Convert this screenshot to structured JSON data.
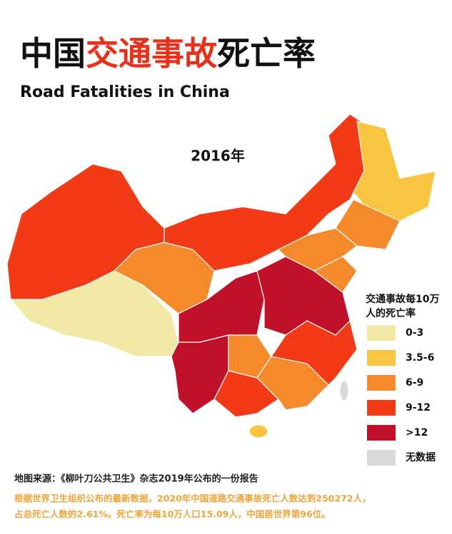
{
  "header": {
    "title_parts": [
      "中国",
      "交通事故",
      "死亡率"
    ],
    "subtitle": "Road Fatalities in China"
  },
  "map": {
    "year_label": "2016年"
  },
  "legend": {
    "title_lines": [
      "交通事故每10万",
      "人的死亡率"
    ],
    "items": [
      {
        "label": "0-3",
        "color": "#f3e9a6"
      },
      {
        "label": "3.5-6",
        "color": "#f9c440"
      },
      {
        "label": "6-9",
        "color": "#f48a2c"
      },
      {
        "label": "9-12",
        "color": "#f23a16"
      },
      {
        "label": ">12",
        "color": "#c0102a"
      },
      {
        "label": "无数据",
        "color": "#d9d9d9"
      }
    ]
  },
  "footer": {
    "source": "地图来源：《柳叶刀公共卫生》杂志2019年公布的一份报告",
    "notes": [
      "根据世界卫生组织公布的最新数据，2020年中国道路交通事故死亡人数达到250272人，",
      "占总死亡人数的2.61%。死亡率为每10万人口15.09人，中国居世界第96位。"
    ]
  }
}
